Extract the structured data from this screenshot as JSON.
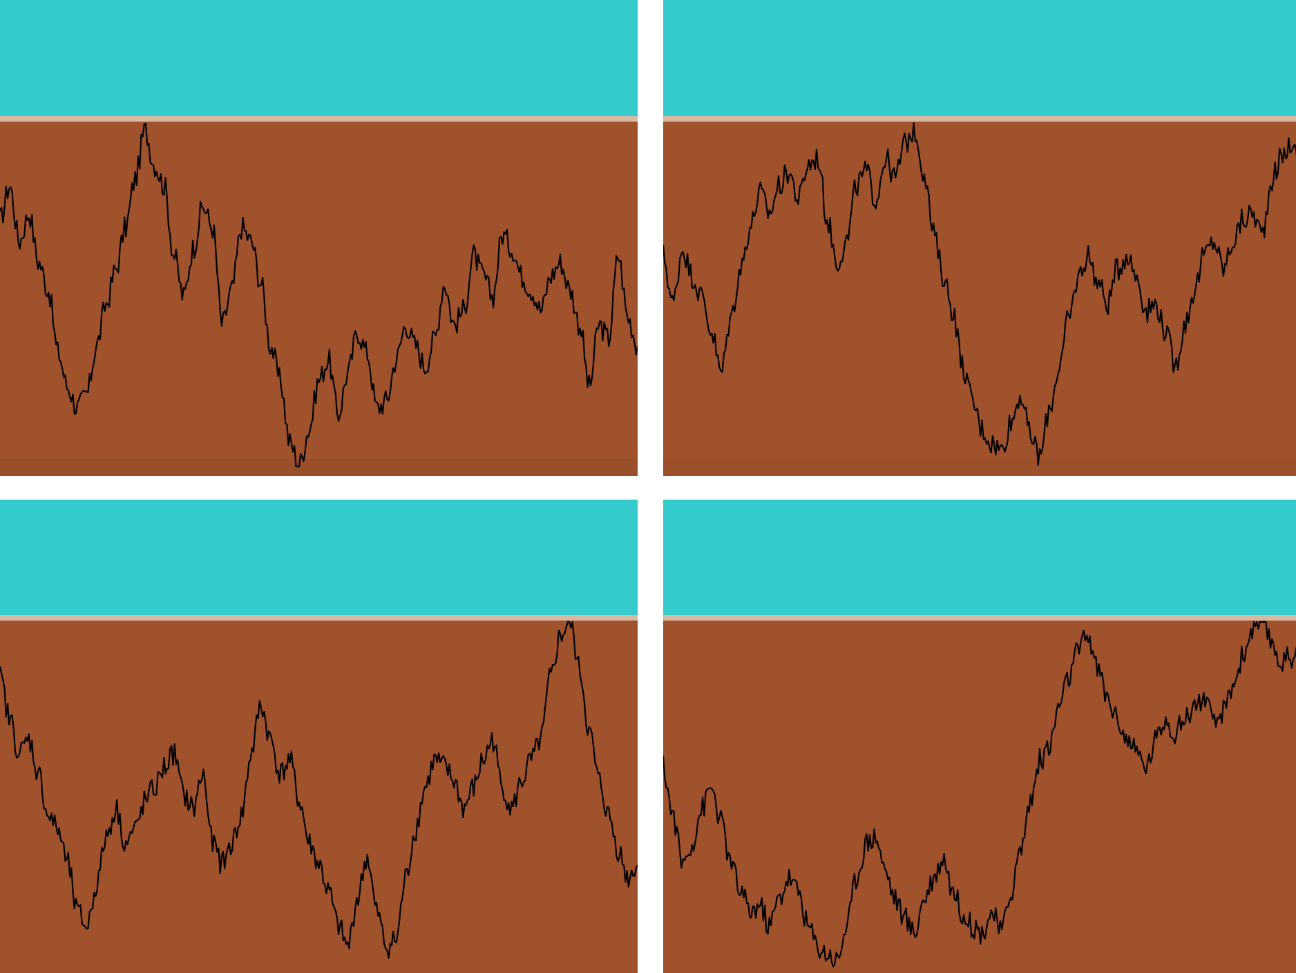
{
  "colors": {
    "sky": "#33CBCB",
    "band": "#D7B8A3",
    "ground": "#A0522D",
    "ground_shade": "#8E4A29",
    "line": "#000000",
    "gap": "#FFFFFF"
  },
  "panels": [
    {
      "id": "top-left",
      "profile": [
        0.72,
        0.82,
        0.66,
        0.74,
        0.6,
        0.52,
        0.34,
        0.24,
        0.18,
        0.22,
        0.36,
        0.48,
        0.58,
        0.7,
        0.84,
        0.98,
        0.88,
        0.82,
        0.62,
        0.5,
        0.64,
        0.76,
        0.7,
        0.42,
        0.52,
        0.7,
        0.66,
        0.54,
        0.36,
        0.26,
        0.08,
        0.02,
        0.12,
        0.26,
        0.32,
        0.16,
        0.28,
        0.4,
        0.34,
        0.18,
        0.2,
        0.32,
        0.42,
        0.36,
        0.3,
        0.38,
        0.54,
        0.42,
        0.46,
        0.62,
        0.56,
        0.5,
        0.68,
        0.64,
        0.56,
        0.52,
        0.46,
        0.56,
        0.6,
        0.52,
        0.42,
        0.24,
        0.42,
        0.38,
        0.62,
        0.44,
        0.36
      ]
    },
    {
      "id": "top-right",
      "profile": [
        0.62,
        0.48,
        0.64,
        0.56,
        0.5,
        0.4,
        0.28,
        0.44,
        0.58,
        0.7,
        0.8,
        0.74,
        0.82,
        0.86,
        0.78,
        0.88,
        0.9,
        0.72,
        0.6,
        0.66,
        0.82,
        0.86,
        0.78,
        0.9,
        0.84,
        0.94,
        0.98,
        0.86,
        0.68,
        0.56,
        0.46,
        0.3,
        0.2,
        0.12,
        0.08,
        0.06,
        0.14,
        0.22,
        0.1,
        0.04,
        0.18,
        0.3,
        0.44,
        0.56,
        0.62,
        0.54,
        0.48,
        0.58,
        0.62,
        0.56,
        0.46,
        0.48,
        0.4,
        0.3,
        0.42,
        0.52,
        0.62,
        0.66,
        0.58,
        0.66,
        0.72,
        0.74,
        0.68,
        0.84,
        0.9,
        0.94,
        0.86
      ]
    },
    {
      "id": "bottom-left",
      "profile": [
        0.84,
        0.72,
        0.62,
        0.66,
        0.56,
        0.44,
        0.4,
        0.3,
        0.16,
        0.12,
        0.24,
        0.38,
        0.46,
        0.36,
        0.4,
        0.48,
        0.52,
        0.58,
        0.62,
        0.5,
        0.46,
        0.56,
        0.36,
        0.3,
        0.36,
        0.44,
        0.62,
        0.76,
        0.66,
        0.56,
        0.6,
        0.48,
        0.36,
        0.3,
        0.22,
        0.12,
        0.06,
        0.2,
        0.32,
        0.16,
        0.06,
        0.08,
        0.26,
        0.4,
        0.52,
        0.6,
        0.58,
        0.54,
        0.46,
        0.52,
        0.6,
        0.66,
        0.52,
        0.46,
        0.54,
        0.6,
        0.66,
        0.84,
        0.96,
        1.0,
        0.86,
        0.68,
        0.54,
        0.44,
        0.34,
        0.26,
        0.3
      ]
    },
    {
      "id": "bottom-right",
      "profile": [
        0.58,
        0.44,
        0.3,
        0.36,
        0.46,
        0.52,
        0.42,
        0.3,
        0.22,
        0.16,
        0.18,
        0.12,
        0.2,
        0.26,
        0.22,
        0.12,
        0.06,
        0.04,
        0.02,
        0.12,
        0.26,
        0.36,
        0.38,
        0.28,
        0.2,
        0.14,
        0.1,
        0.2,
        0.26,
        0.32,
        0.22,
        0.16,
        0.12,
        0.1,
        0.16,
        0.1,
        0.22,
        0.34,
        0.48,
        0.6,
        0.64,
        0.76,
        0.84,
        0.92,
        0.96,
        0.86,
        0.78,
        0.72,
        0.66,
        0.62,
        0.58,
        0.66,
        0.72,
        0.68,
        0.72,
        0.76,
        0.78,
        0.7,
        0.74,
        0.82,
        0.9,
        0.98,
        1.0,
        0.94,
        0.88,
        0.9,
        0.92
      ]
    }
  ]
}
